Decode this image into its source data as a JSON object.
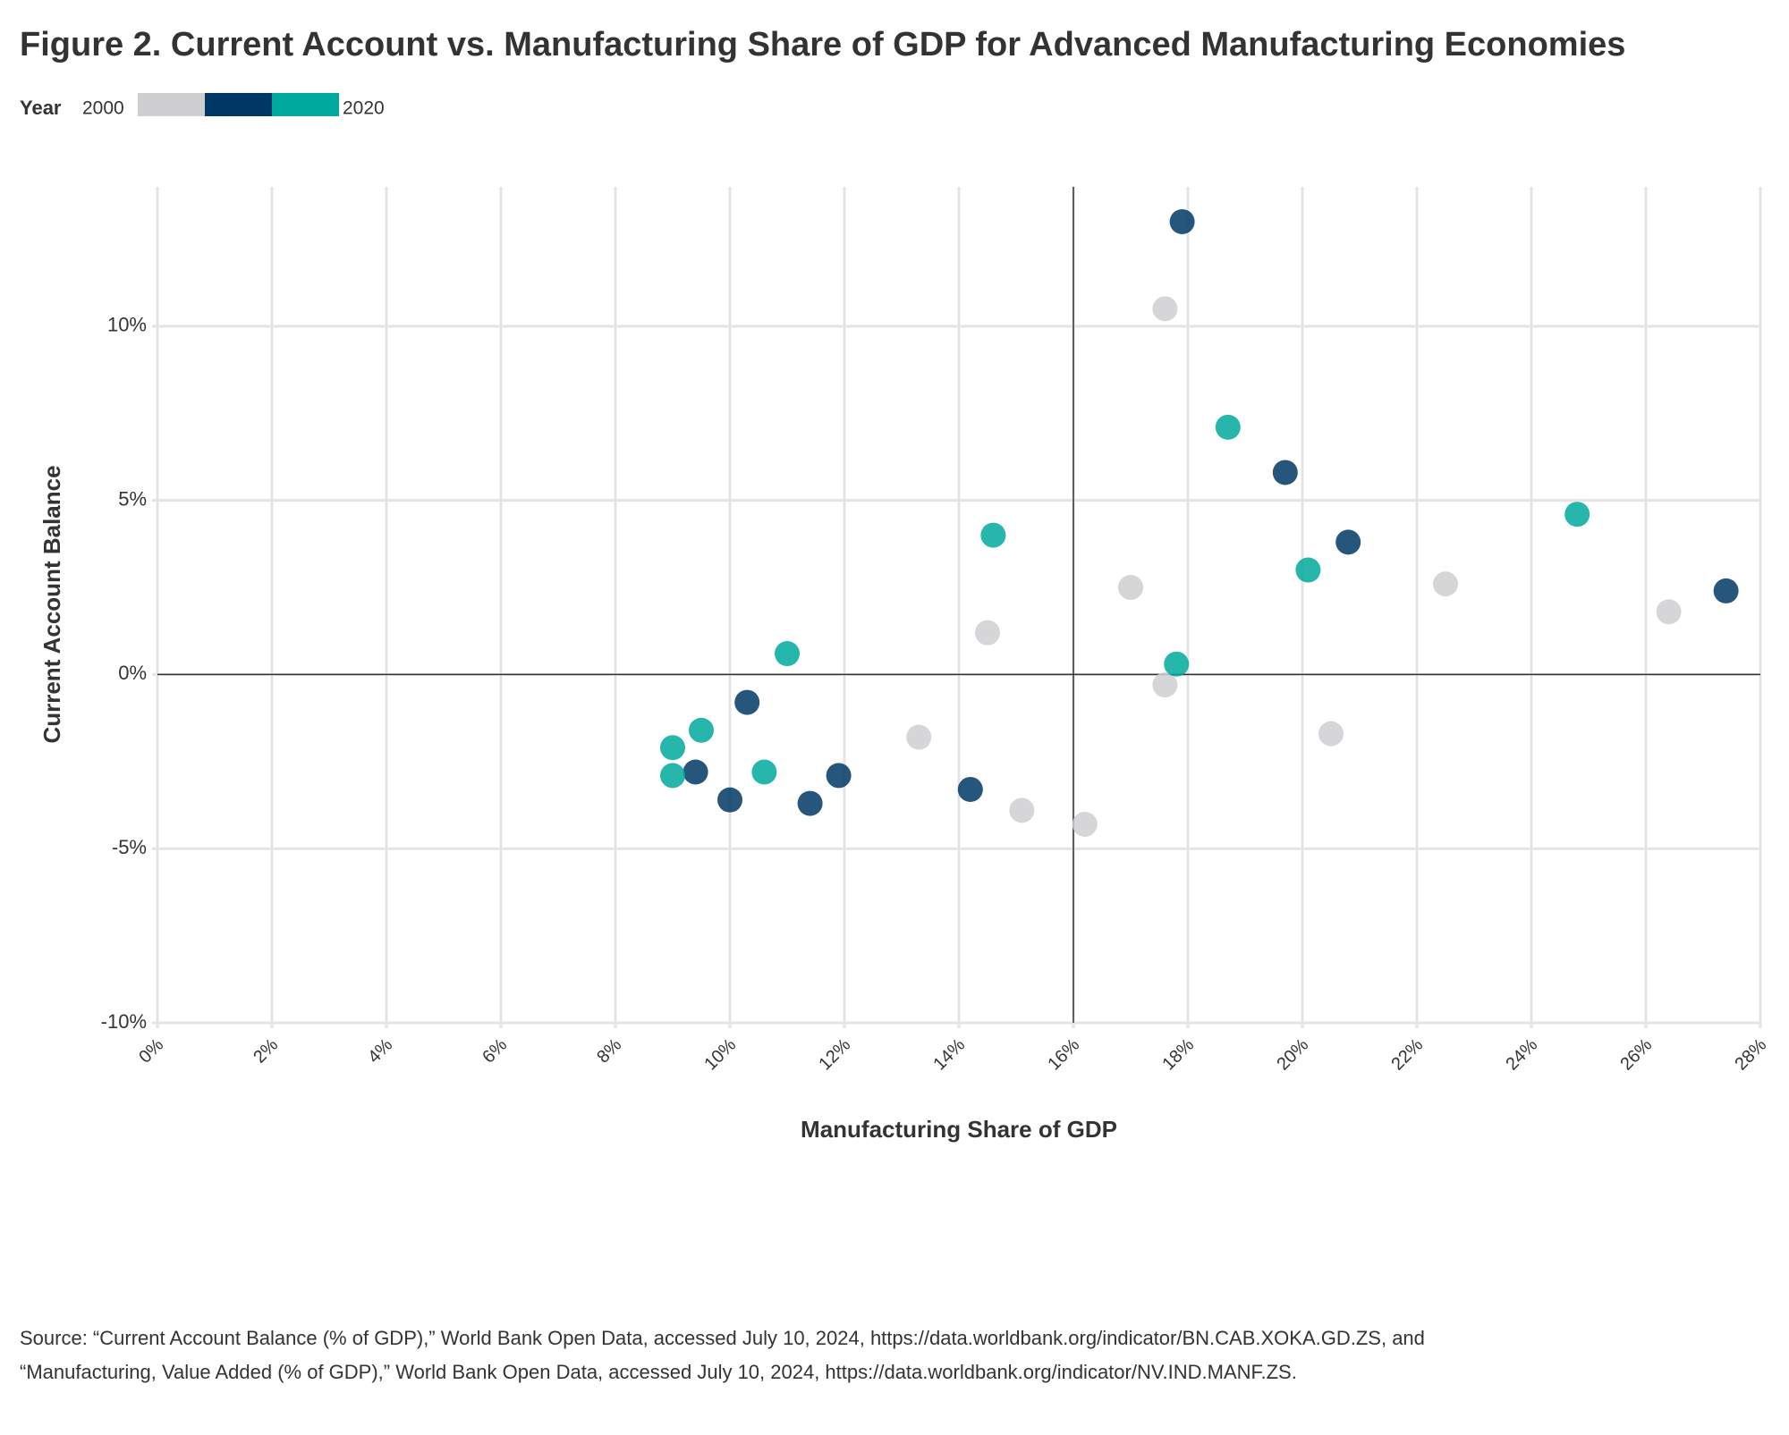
{
  "chart_data": {
    "type": "scatter",
    "title": "Figure 2. Current Account vs. Manufacturing Share of GDP for Advanced Manufacturing Economies",
    "legend_title": "Year",
    "legend_labels": [
      "2000",
      "2020"
    ],
    "x_label": "Manufacturing Share of GDP",
    "y_label": "Current Account Balance",
    "xlim": [
      0,
      28
    ],
    "ylim": [
      -10,
      14
    ],
    "xticks": [
      {
        "value": 0,
        "label": "0%"
      },
      {
        "value": 2,
        "label": "2%"
      },
      {
        "value": 4,
        "label": "4%"
      },
      {
        "value": 6,
        "label": "6%"
      },
      {
        "value": 8,
        "label": "8%"
      },
      {
        "value": 10,
        "label": "10%"
      },
      {
        "value": 12,
        "label": "12%"
      },
      {
        "value": 14,
        "label": "14%"
      },
      {
        "value": 16,
        "label": "16%"
      },
      {
        "value": 18,
        "label": "18%"
      },
      {
        "value": 20,
        "label": "20%"
      },
      {
        "value": 22,
        "label": "22%"
      },
      {
        "value": 24,
        "label": "24%"
      },
      {
        "value": 26,
        "label": "26%"
      },
      {
        "value": 28,
        "label": "28%"
      }
    ],
    "yticks": [
      {
        "value": -10,
        "label": "-10%"
      },
      {
        "value": -5,
        "label": "-5%"
      },
      {
        "value": 0,
        "label": "0%"
      },
      {
        "value": 5,
        "label": "5%"
      },
      {
        "value": 10,
        "label": "10%"
      }
    ],
    "x_reference": 16,
    "y_reference": 0,
    "grid": true,
    "series": [
      {
        "name": "2000",
        "color": "#cfcfd1",
        "x": [
          17.6,
          17.0,
          22.5,
          26.4,
          14.5,
          17.6,
          20.5,
          13.3,
          15.1,
          16.2
        ],
        "values": [
          10.5,
          2.5,
          2.6,
          1.8,
          1.2,
          -0.3,
          -1.7,
          -1.8,
          -3.9,
          -4.3
        ]
      },
      {
        "color": "#003865",
        "x": [
          17.9,
          19.7,
          20.8,
          27.4,
          10.3,
          9.4,
          10.0,
          11.4,
          11.9,
          14.2
        ],
        "values": [
          13.0,
          5.8,
          3.8,
          2.4,
          -0.8,
          -2.8,
          -3.6,
          -3.7,
          -2.9,
          -3.3
        ]
      },
      {
        "name": "2020",
        "color": "#00a99d",
        "x": [
          18.7,
          24.8,
          14.6,
          20.1,
          17.8,
          11.0,
          9.5,
          9.0,
          9.0,
          10.6
        ],
        "values": [
          7.1,
          4.6,
          4.0,
          3.0,
          0.3,
          0.6,
          -1.6,
          -2.1,
          -2.9,
          -2.8
        ]
      }
    ],
    "source": [
      "Source: “Current Account Balance (% of GDP),” World Bank Open Data, accessed July 10, 2024, https://data.worldbank.org/indicator/BN.CAB.XOKA.GD.ZS, and",
      "“Manufacturing, Value Added (% of GDP),” World Bank Open Data, accessed July 10, 2024, https://data.worldbank.org/indicator/NV.IND.MANF.ZS."
    ]
  }
}
